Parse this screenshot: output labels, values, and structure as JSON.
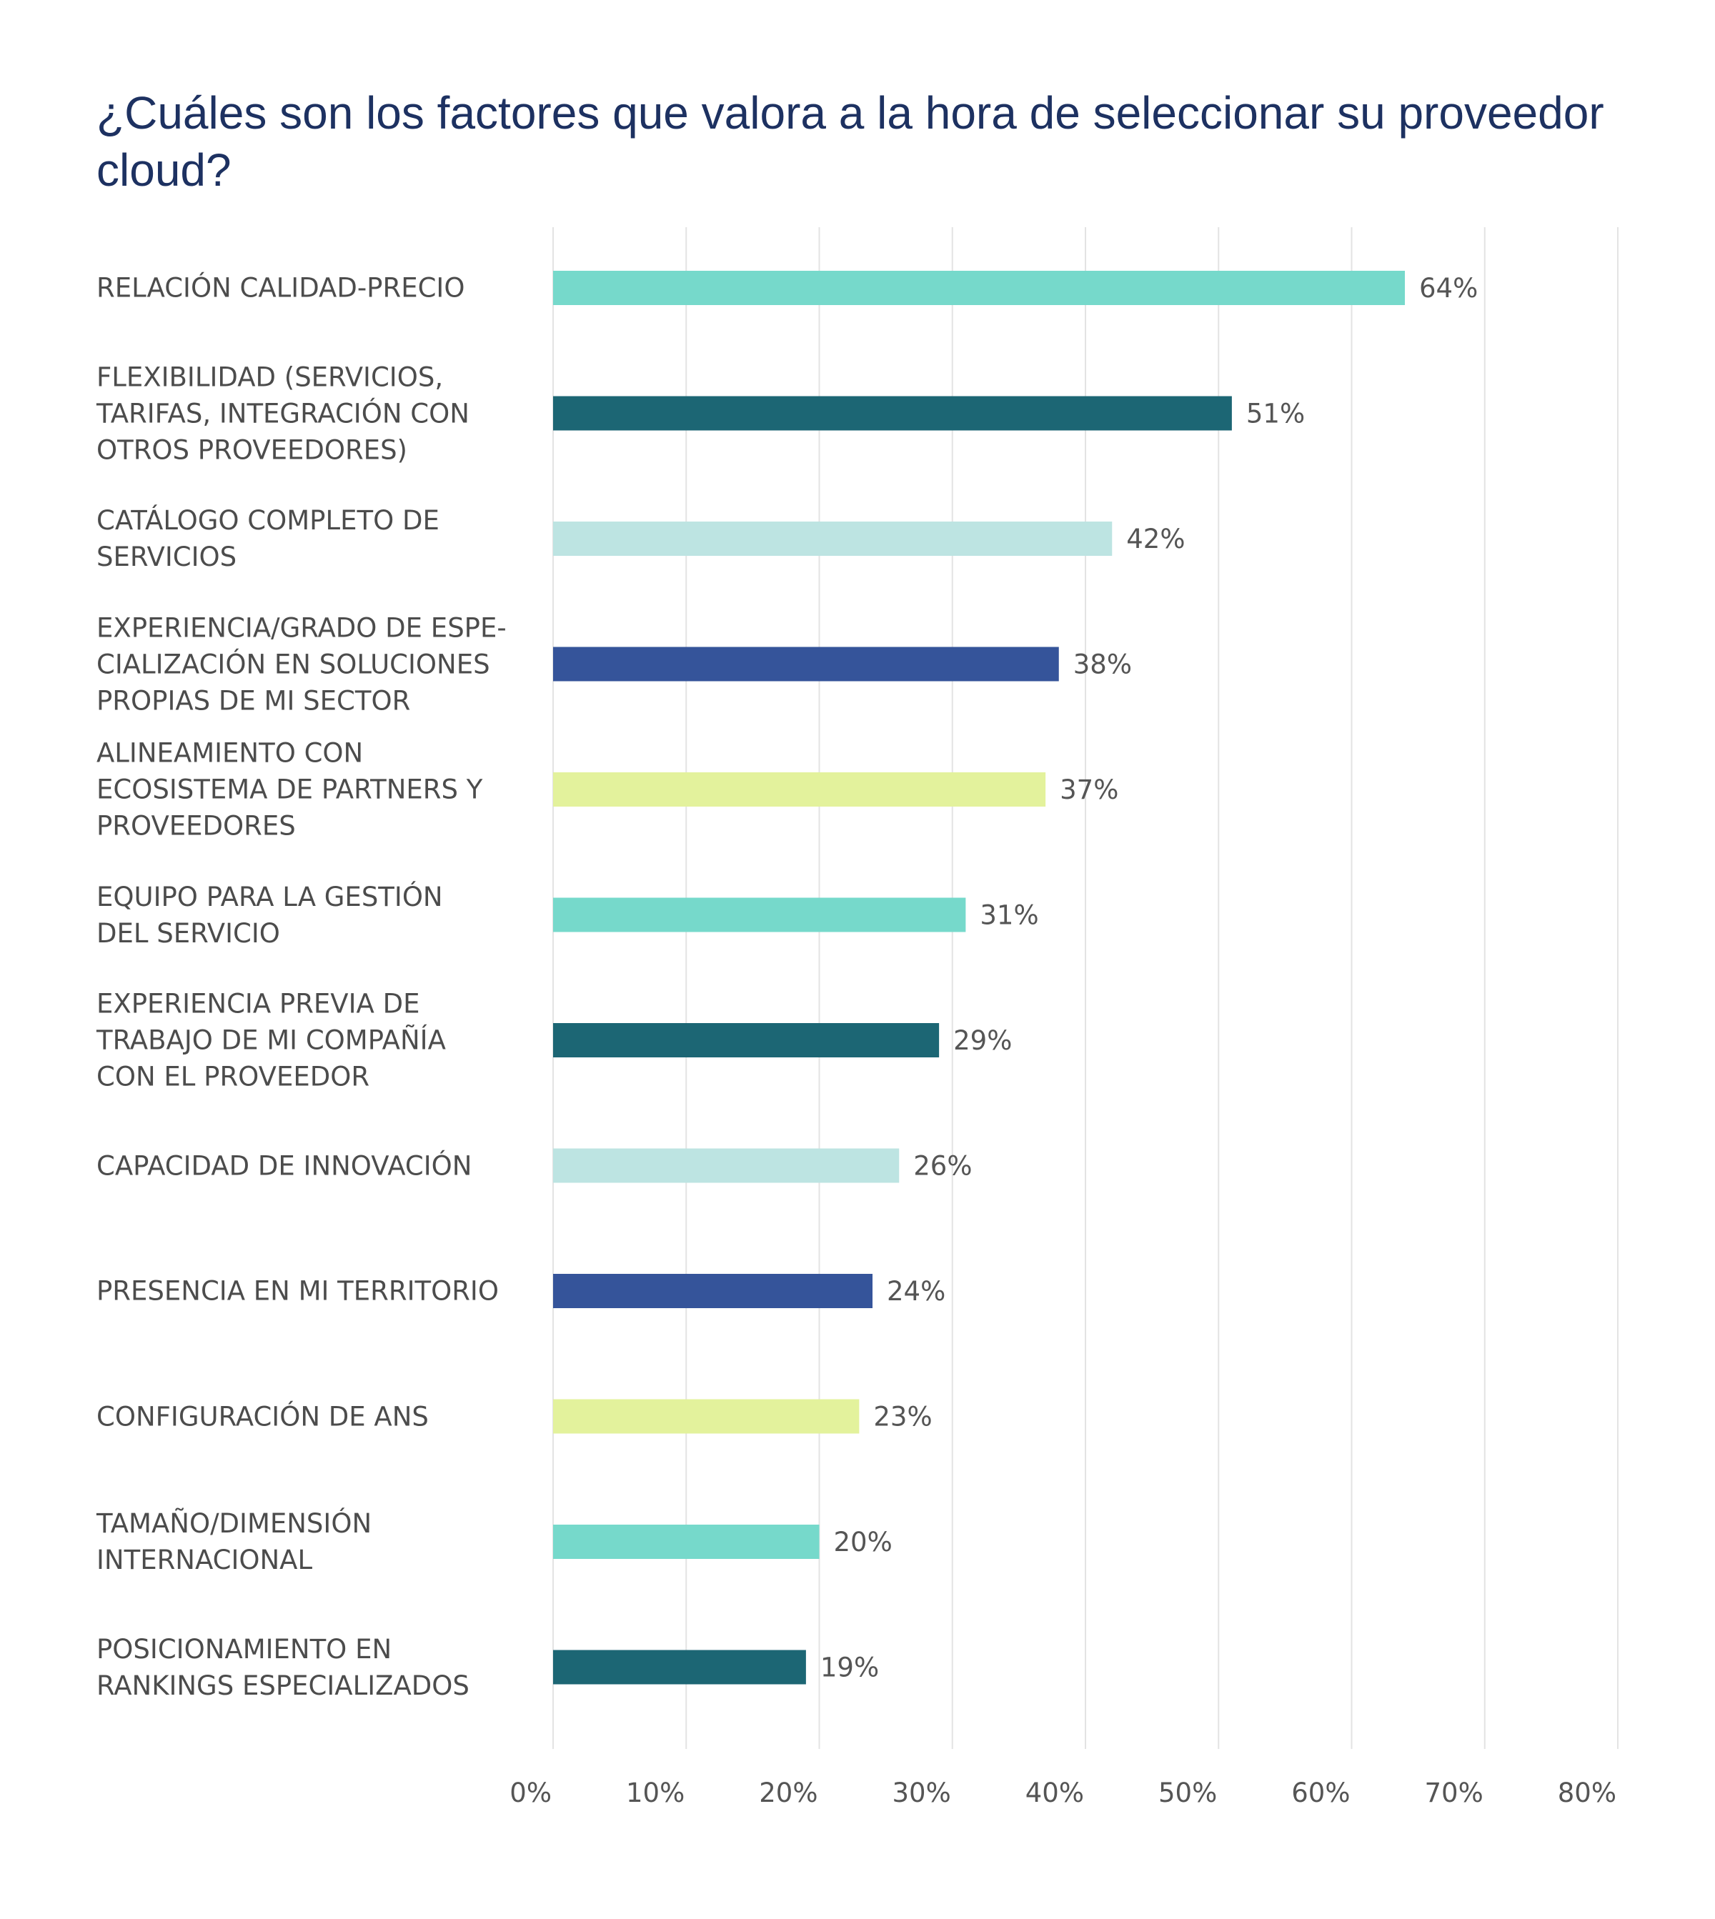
{
  "title": "¿Cuáles son los factores que valora a la hora de seleccionar su proveedor cloud?",
  "chart_data": {
    "type": "bar",
    "orientation": "horizontal",
    "title": "¿Cuáles son los factores que valora a la hora de seleccionar su proveedor cloud?",
    "xlabel": "",
    "ylabel": "",
    "xlim": [
      0,
      80
    ],
    "grid": true,
    "legend": "none",
    "categories": [
      "RELACIÓN CALIDAD-PRECIO",
      "FLEXIBILIDAD (SERVICIOS,\nTARIFAS, INTEGRACIÓN CON\nOTROS PROVEEDORES)",
      "CATÁLOGO COMPLETO DE\nSERVICIOS",
      "EXPERIENCIA/GRADO DE ESPE-\nCIALIZACIÓN EN SOLUCIONES\nPROPIAS DE MI SECTOR",
      "ALINEAMIENTO CON\nECOSISTEMA DE PARTNERS Y\nPROVEEDORES",
      "EQUIPO PARA LA GESTIÓN\nDEL SERVICIO",
      "EXPERIENCIA PREVIA DE\nTRABAJO DE MI COMPAÑÍA\nCON EL PROVEEDOR",
      "CAPACIDAD DE INNOVACIÓN",
      "PRESENCIA EN MI TERRITORIO",
      "CONFIGURACIÓN DE ANS",
      "TAMAÑO/DIMENSIÓN\nINTERNACIONAL",
      "POSICIONAMIENTO EN\nRANKINGS ESPECIALIZADOS"
    ],
    "values": [
      64,
      51,
      42,
      38,
      37,
      31,
      29,
      26,
      24,
      23,
      20,
      19
    ],
    "value_labels": [
      "64%",
      "51%",
      "42%",
      "38%",
      "37%",
      "31%",
      "29%",
      "26%",
      "24%",
      "23%",
      "20%",
      "19%"
    ],
    "bar_colors": [
      "#76d9cb",
      "#1c6674",
      "#bde4e2",
      "#35549a",
      "#e3f29c",
      "#76d9cb",
      "#1c6674",
      "#bde4e2",
      "#35549a",
      "#e3f29c",
      "#76d9cb",
      "#1c6674"
    ],
    "ticks": [
      0,
      10,
      20,
      30,
      40,
      50,
      60,
      70,
      80
    ],
    "tick_labels": [
      "0%",
      "10%",
      "20%",
      "30%",
      "40%",
      "50%",
      "60%",
      "70%",
      "80%"
    ]
  }
}
